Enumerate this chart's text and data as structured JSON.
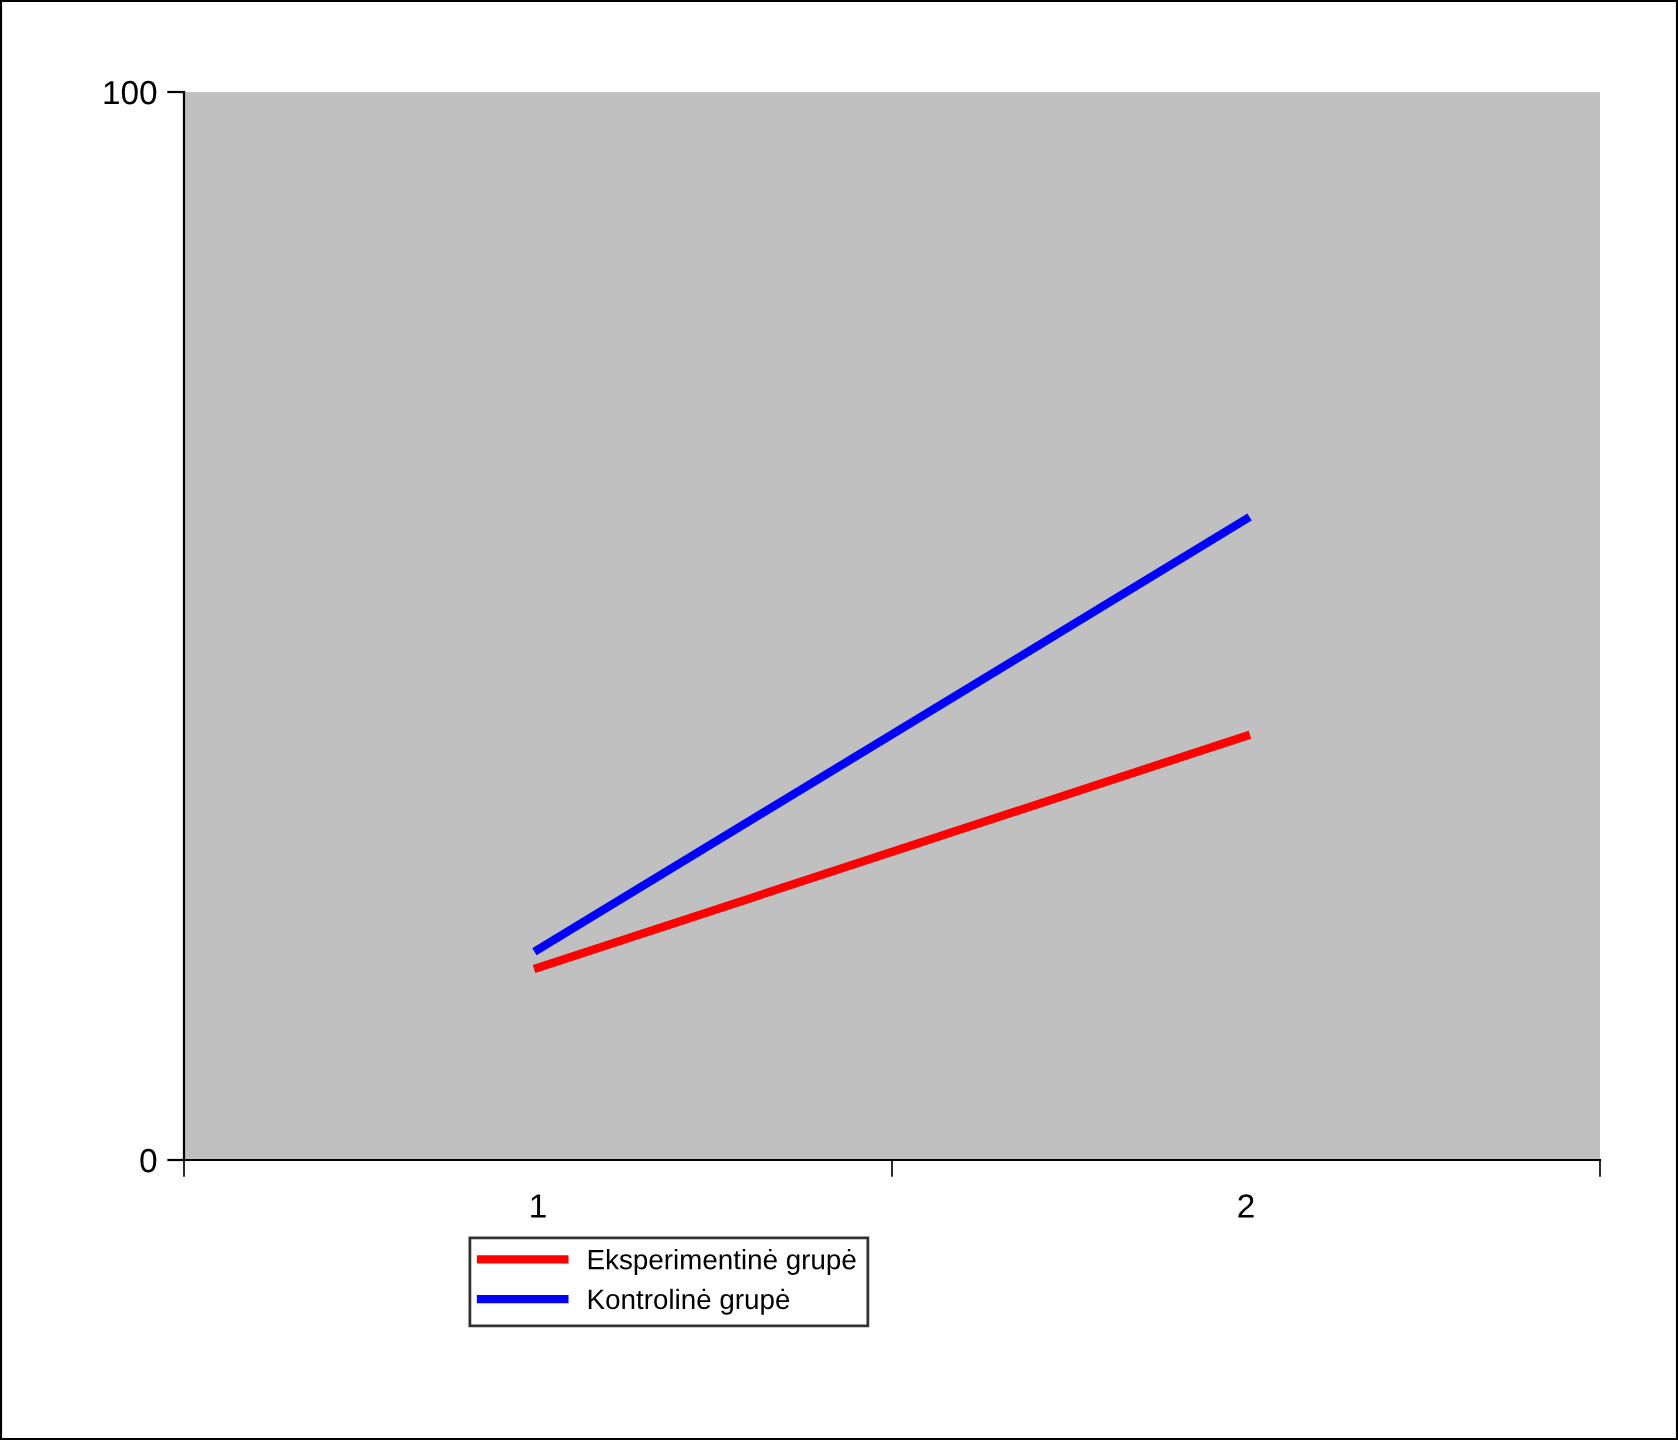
{
  "chart_data": {
    "type": "line",
    "categories": [
      "1",
      "2"
    ],
    "series": [
      {
        "name": "Eksperimentinė grupė",
        "color": "#ff0000",
        "values": [
          18,
          39.7
        ]
      },
      {
        "name": "Kontrolinė grupė",
        "color": "#0000ff",
        "values": [
          19.7,
          60
        ]
      }
    ],
    "ylim": [
      0,
      100
    ],
    "yticks": [
      0,
      100
    ],
    "grid": false,
    "legend": "bottom",
    "marker": "none",
    "line_style": "solid"
  }
}
